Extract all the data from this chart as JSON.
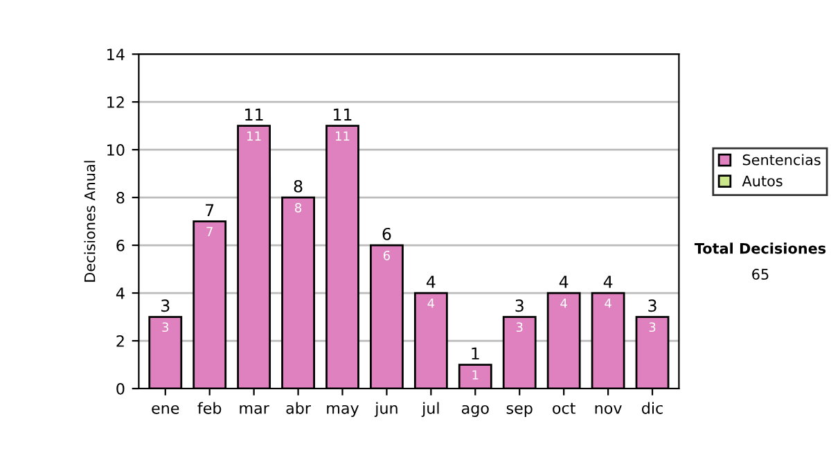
{
  "chart_data": {
    "type": "bar",
    "stacked": true,
    "ylabel": "Decisiones Anual",
    "categories": [
      "ene",
      "feb",
      "mar",
      "abr",
      "may",
      "jun",
      "jul",
      "ago",
      "sep",
      "oct",
      "nov",
      "dic"
    ],
    "series": [
      {
        "name": "Sentencias",
        "color": "#df80bf",
        "values": [
          3,
          7,
          11,
          8,
          11,
          6,
          4,
          1,
          3,
          4,
          4,
          3
        ],
        "value_labels": [
          "3",
          "7",
          "11",
          "8",
          "11",
          "6",
          "4",
          "1",
          "3",
          "4",
          "4",
          "3"
        ]
      },
      {
        "name": "Autos",
        "color": "#cce68c",
        "values": [
          0,
          0,
          0,
          0,
          0,
          0,
          0,
          0,
          0,
          0,
          0,
          0
        ]
      }
    ],
    "totals": [
      "3",
      "7",
      "11",
      "8",
      "11",
      "6",
      "4",
      "1",
      "3",
      "4",
      "4",
      "3"
    ],
    "ylim": [
      0,
      14
    ],
    "yticks": [
      0,
      2,
      4,
      6,
      8,
      10,
      12,
      14
    ],
    "grid": "y",
    "legend": "right",
    "annotations": [
      "Total Decisiones",
      "65"
    ]
  }
}
